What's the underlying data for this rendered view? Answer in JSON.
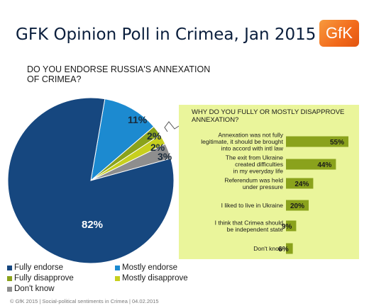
{
  "title": "GFK Opinion Poll in Crimea, Jan 2015",
  "logo": "GfK",
  "footer": "© GfK 2015 | Social-political sentiments in Crimea | 04.02.2015",
  "chart_data": [
    {
      "type": "pie",
      "title": "DO YOU ENDORSE RUSSIA'S ANNEXATION OF CRIMEA?",
      "slices": [
        {
          "label": "Fully endorse",
          "value": 82,
          "display": "82%",
          "color": "#16477f"
        },
        {
          "label": "Mostly endorse",
          "value": 11,
          "display": "11%",
          "color": "#1c8ad0"
        },
        {
          "label": "Fully disapprove",
          "value": 2,
          "display": "2%",
          "color": "#8aa21c"
        },
        {
          "label": "Mostly disapprove",
          "value": 2,
          "display": "2%",
          "color": "#c7cf1e"
        },
        {
          "label": "Don't know",
          "value": 3,
          "display": "3%",
          "color": "#8e8e8e"
        }
      ],
      "legend": [
        "Fully endorse",
        "Mostly endorse",
        "Fully disapprove",
        "Mostly disapprove",
        "Don't know"
      ],
      "legend_position": "bottom-left"
    },
    {
      "type": "bar",
      "orientation": "horizontal",
      "title": "WHY DO YOU FULLY  OR MOSTLY DISAPPROVE ANNEXATION?",
      "categories": [
        "Annexation was not fully legitimate, it should be brought into accord with intl law",
        "The exit from Ukraine created difficulties in my everyday life",
        "Referendum was held under pressure",
        "I liked to live in Ukraine",
        "I think that Crimea should be independent  state",
        "Don't know"
      ],
      "category_lines": [
        [
          "Annexation was not fully",
          "legitimate, it should be brought",
          "into accord with intl law"
        ],
        [
          "The exit from Ukraine",
          "created difficulties",
          "in my everyday life"
        ],
        [
          "Referendum was held",
          "under pressure"
        ],
        [
          "I liked to live in Ukraine"
        ],
        [
          "I think that Crimea should",
          "be independent  state"
        ],
        [
          "Don't know"
        ]
      ],
      "values": [
        55,
        44,
        24,
        20,
        9,
        6
      ],
      "value_labels": [
        "55%",
        "44%",
        "24%",
        "20%",
        "9%",
        "6%"
      ],
      "xlim": [
        0,
        60
      ],
      "bar_color": "#8aa21c",
      "background": "#eaf59b"
    }
  ]
}
